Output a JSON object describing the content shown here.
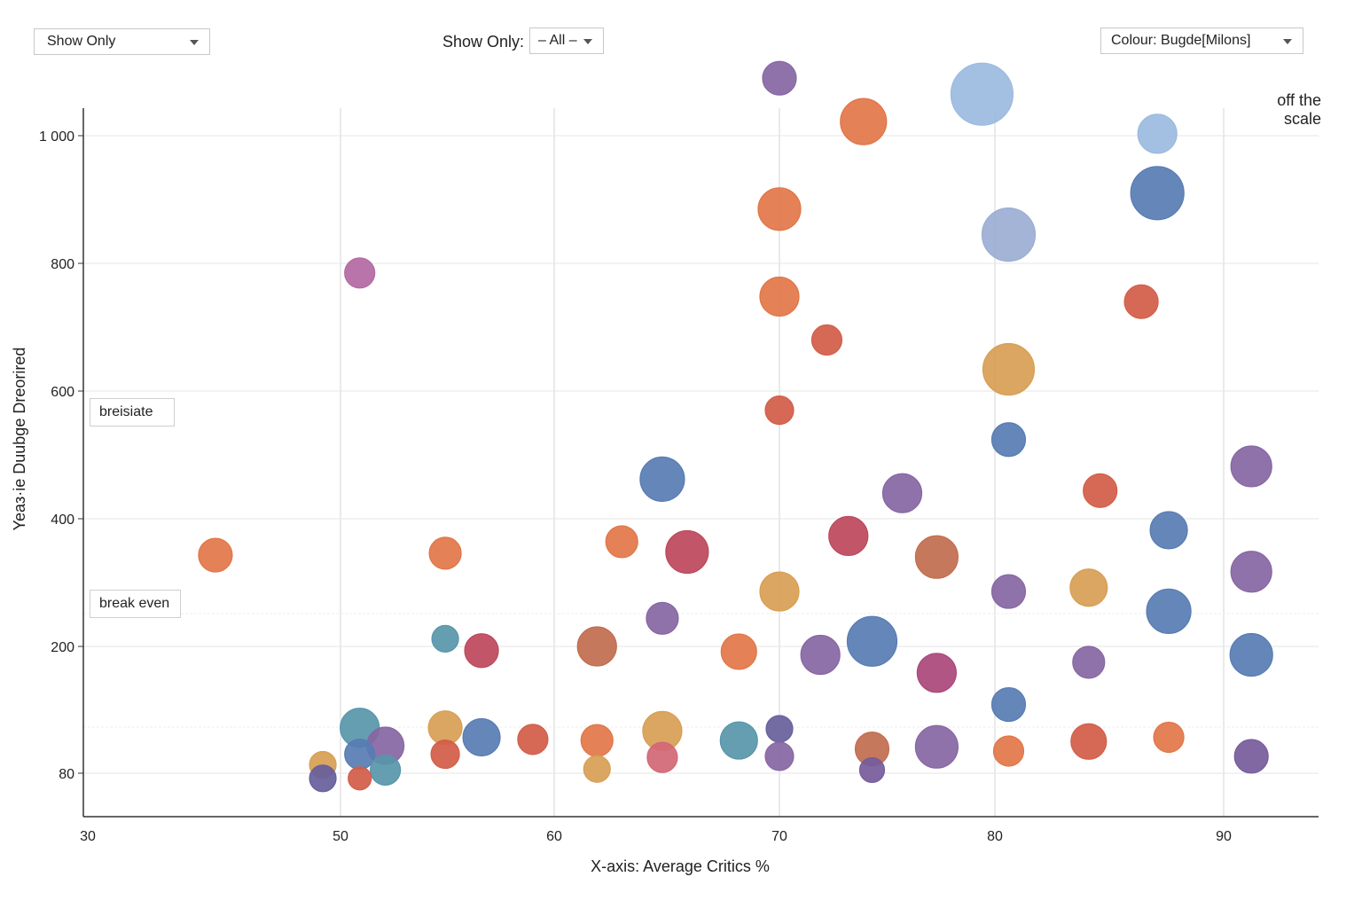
{
  "controls": {
    "left_dropdown": "Show Only",
    "center_label": "Show Only:",
    "center_dropdown": "– All –",
    "right_dropdown": "Colour: Bugde[Milons]"
  },
  "annotations": {
    "upper_box": "breisiate",
    "lower_box": "break even",
    "corner_line1": "off the",
    "corner_line2": "scale"
  },
  "chart_data": {
    "type": "scatter",
    "xlabel": "X-axis: Average Critics %",
    "ylabel": "Yeaз·ie Duubge Dreorired",
    "x_ticks": [
      "30",
      "50",
      "60",
      "70",
      "80",
      "90"
    ],
    "y_ticks": [
      "80",
      "200",
      "400",
      "600",
      "800",
      "1 000"
    ],
    "colors": {
      "orange": "#e8794a",
      "red": "#d9604a",
      "crimson": "#c24a5e",
      "magenta": "#b0497e",
      "pink": "#b86ca8",
      "rose": "#d96a7a",
      "purple": "#8b69a8",
      "violet": "#7a5ea0",
      "navy": "#6a62a0",
      "blue": "#5a80b8",
      "lightblue": "#a0c0e6",
      "periwinkle": "#9fb3d9",
      "teal": "#5a9ab0",
      "gold": "#dea456",
      "brown": "#c87050"
    },
    "points": [
      {
        "x": 70,
        "y": 1090,
        "r": 19,
        "c": "purple"
      },
      {
        "x": 79.4,
        "y": 1065,
        "r": 35,
        "c": "lightblue"
      },
      {
        "x": 73.9,
        "y": 1022,
        "r": 26,
        "c": "orange"
      },
      {
        "x": 87.1,
        "y": 1003,
        "r": 22,
        "c": "lightblue"
      },
      {
        "x": 87.1,
        "y": 910,
        "r": 30,
        "c": "blue"
      },
      {
        "x": 70,
        "y": 885,
        "r": 24,
        "c": "orange"
      },
      {
        "x": 80.6,
        "y": 845,
        "r": 30,
        "c": "periwinkle"
      },
      {
        "x": 50.9,
        "y": 785,
        "r": 17,
        "c": "pink"
      },
      {
        "x": 70,
        "y": 748,
        "r": 22,
        "c": "orange"
      },
      {
        "x": 86.4,
        "y": 740,
        "r": 19,
        "c": "red"
      },
      {
        "x": 72.2,
        "y": 680,
        "r": 17,
        "c": "red"
      },
      {
        "x": 80.6,
        "y": 634,
        "r": 29,
        "c": "gold"
      },
      {
        "x": 70,
        "y": 570,
        "r": 16,
        "c": "red"
      },
      {
        "x": 80.6,
        "y": 524,
        "r": 19,
        "c": "blue"
      },
      {
        "x": 91.3,
        "y": 482,
        "r": 23,
        "c": "purple"
      },
      {
        "x": 64.8,
        "y": 462,
        "r": 25,
        "c": "blue"
      },
      {
        "x": 84.6,
        "y": 444,
        "r": 19,
        "c": "red"
      },
      {
        "x": 75.7,
        "y": 440,
        "r": 22,
        "c": "purple"
      },
      {
        "x": 87.6,
        "y": 382,
        "r": 21,
        "c": "blue"
      },
      {
        "x": 73.2,
        "y": 373,
        "r": 22,
        "c": "crimson"
      },
      {
        "x": 63,
        "y": 364,
        "r": 18,
        "c": "orange"
      },
      {
        "x": 65.9,
        "y": 348,
        "r": 24,
        "c": "crimson"
      },
      {
        "x": 54.9,
        "y": 346,
        "r": 18,
        "c": "orange"
      },
      {
        "x": 40.1,
        "y": 343,
        "r": 19,
        "c": "orange"
      },
      {
        "x": 77.3,
        "y": 340,
        "r": 24,
        "c": "brown"
      },
      {
        "x": 91.3,
        "y": 317,
        "r": 23,
        "c": "purple"
      },
      {
        "x": 70,
        "y": 286,
        "r": 22,
        "c": "gold"
      },
      {
        "x": 80.6,
        "y": 286,
        "r": 19,
        "c": "purple"
      },
      {
        "x": 84.1,
        "y": 292,
        "r": 21,
        "c": "gold"
      },
      {
        "x": 87.6,
        "y": 255,
        "r": 25,
        "c": "blue"
      },
      {
        "x": 64.8,
        "y": 244,
        "r": 18,
        "c": "purple"
      },
      {
        "x": 54.9,
        "y": 212,
        "r": 15,
        "c": "teal"
      },
      {
        "x": 56.6,
        "y": 196,
        "r": 19,
        "c": "crimson"
      },
      {
        "x": 61.9,
        "y": 200,
        "r": 22,
        "c": "brown"
      },
      {
        "x": 68.2,
        "y": 195,
        "r": 20,
        "c": "orange"
      },
      {
        "x": 71.9,
        "y": 192,
        "r": 22,
        "c": "purple"
      },
      {
        "x": 74.3,
        "y": 208,
        "r": 28,
        "c": "blue"
      },
      {
        "x": 77.3,
        "y": 175,
        "r": 22,
        "c": "magenta"
      },
      {
        "x": 84.1,
        "y": 185,
        "r": 18,
        "c": "purple"
      },
      {
        "x": 91.3,
        "y": 192,
        "r": 24,
        "c": "blue"
      },
      {
        "x": 80.6,
        "y": 145,
        "r": 19,
        "c": "blue"
      },
      {
        "x": 50.9,
        "y": 123,
        "r": 22,
        "c": "teal"
      },
      {
        "x": 54.9,
        "y": 123,
        "r": 19,
        "c": "gold"
      },
      {
        "x": 64.8,
        "y": 120,
        "r": 22,
        "c": "gold"
      },
      {
        "x": 70,
        "y": 122,
        "r": 15,
        "c": "navy"
      },
      {
        "x": 56.6,
        "y": 114,
        "r": 21,
        "c": "blue"
      },
      {
        "x": 59,
        "y": 112,
        "r": 17,
        "c": "red"
      },
      {
        "x": 61.9,
        "y": 111,
        "r": 18,
        "c": "orange"
      },
      {
        "x": 68.2,
        "y": 111,
        "r": 21,
        "c": "teal"
      },
      {
        "x": 84.1,
        "y": 110,
        "r": 20,
        "c": "red"
      },
      {
        "x": 87.6,
        "y": 114,
        "r": 17,
        "c": "orange"
      },
      {
        "x": 52.1,
        "y": 106,
        "r": 21,
        "c": "purple"
      },
      {
        "x": 74.3,
        "y": 103,
        "r": 19,
        "c": "brown"
      },
      {
        "x": 77.3,
        "y": 105,
        "r": 24,
        "c": "purple"
      },
      {
        "x": 50.9,
        "y": 98,
        "r": 17,
        "c": "blue"
      },
      {
        "x": 54.9,
        "y": 98,
        "r": 16,
        "c": "red"
      },
      {
        "x": 64.8,
        "y": 95,
        "r": 17,
        "c": "rose"
      },
      {
        "x": 70,
        "y": 96,
        "r": 16,
        "c": "purple"
      },
      {
        "x": 80.6,
        "y": 101,
        "r": 17,
        "c": "orange"
      },
      {
        "x": 91.3,
        "y": 96,
        "r": 19,
        "c": "violet"
      },
      {
        "x": 48.6,
        "y": 88,
        "r": 15,
        "c": "gold"
      },
      {
        "x": 61.9,
        "y": 84,
        "r": 15,
        "c": "gold"
      },
      {
        "x": 52.1,
        "y": 83,
        "r": 17,
        "c": "teal"
      },
      {
        "x": 74.3,
        "y": 83,
        "r": 14,
        "c": "violet"
      },
      {
        "x": 48.6,
        "y": 77,
        "r": 15,
        "c": "navy"
      },
      {
        "x": 50.9,
        "y": 77,
        "r": 13,
        "c": "red"
      }
    ]
  }
}
